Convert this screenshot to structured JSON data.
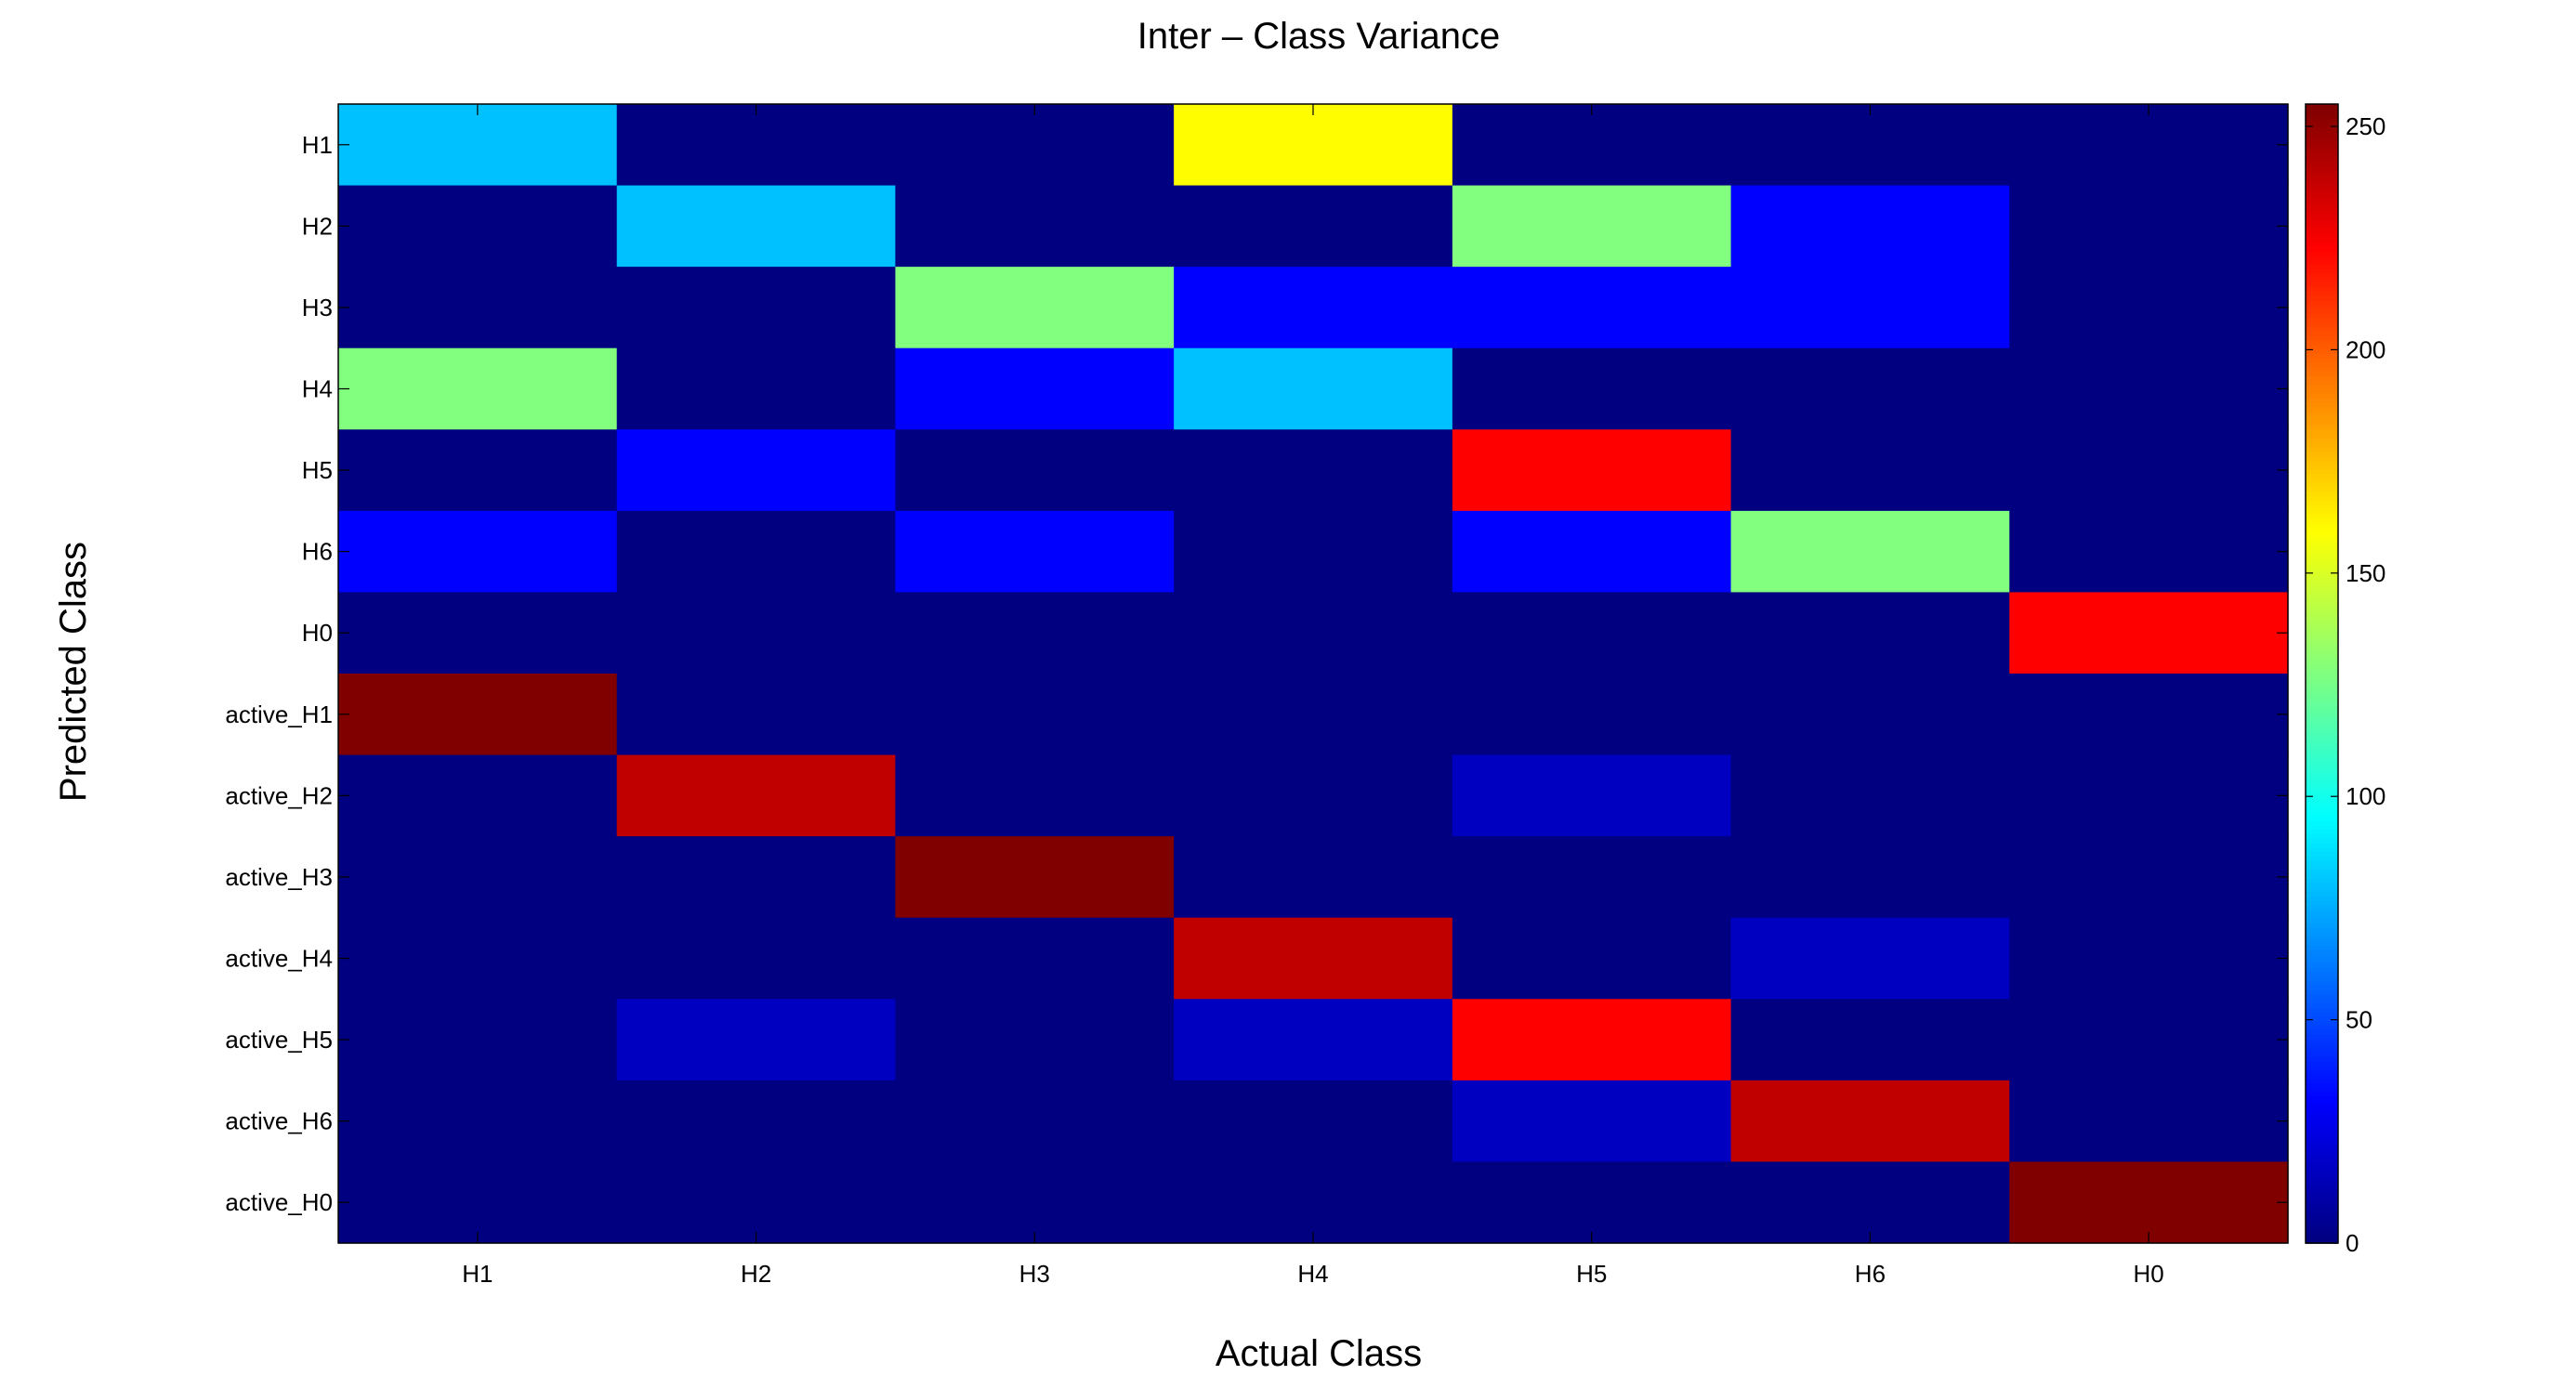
{
  "chart_data": {
    "type": "heatmap",
    "title": "Inter – Class Variance",
    "xlabel": "Actual Class",
    "ylabel": "Predicted Class",
    "x_categories": [
      "H1",
      "H2",
      "H3",
      "H4",
      "H5",
      "H6",
      "H0"
    ],
    "y_categories": [
      "H1",
      "H2",
      "H3",
      "H4",
      "H5",
      "H6",
      "H0",
      "active_H1",
      "active_H2",
      "active_H3",
      "active_H4",
      "active_H5",
      "active_H6",
      "active_H0"
    ],
    "values": [
      [
        80,
        0,
        0,
        160,
        0,
        0,
        0
      ],
      [
        0,
        80,
        0,
        0,
        128,
        32,
        0
      ],
      [
        0,
        0,
        128,
        32,
        32,
        32,
        0
      ],
      [
        128,
        0,
        32,
        80,
        0,
        0,
        0
      ],
      [
        0,
        32,
        0,
        0,
        223,
        0,
        0
      ],
      [
        32,
        0,
        32,
        0,
        32,
        128,
        0
      ],
      [
        0,
        0,
        0,
        0,
        0,
        0,
        223
      ],
      [
        255,
        0,
        0,
        0,
        0,
        0,
        0
      ],
      [
        0,
        239,
        0,
        0,
        16,
        0,
        0
      ],
      [
        0,
        0,
        255,
        0,
        0,
        0,
        0
      ],
      [
        0,
        0,
        0,
        239,
        0,
        16,
        0
      ],
      [
        0,
        16,
        0,
        16,
        223,
        0,
        0
      ],
      [
        0,
        0,
        0,
        0,
        16,
        239,
        0
      ],
      [
        0,
        0,
        0,
        0,
        0,
        0,
        255
      ]
    ],
    "colormap": "jet",
    "clim": [
      0,
      255
    ],
    "colorbar": {
      "ticks": [
        0,
        50,
        100,
        150,
        200,
        250
      ]
    },
    "grid": false,
    "legend": "none"
  }
}
